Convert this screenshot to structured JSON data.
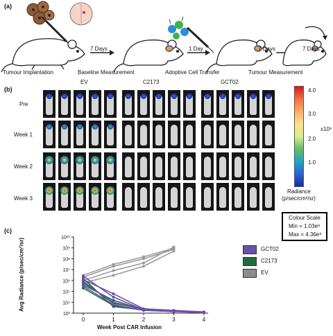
{
  "panel_a": {
    "label": "(a)",
    "steps": [
      {
        "caption": "Tumour Implantation"
      },
      {
        "arrow": "7 Days",
        "caption": "Baseline Measurement"
      },
      {
        "arrow": "1 Day",
        "caption": "Adoptive Cell Transfer"
      },
      {
        "arrow": "7 Days",
        "caption": "Tumour Measurement"
      },
      {
        "arrow": "7 Days"
      }
    ]
  },
  "panel_b": {
    "label": "(b)",
    "groups": [
      "EV",
      "C2173",
      "GCT02"
    ],
    "rows": [
      "Pre",
      "Week 1",
      "Week 2",
      "Week 3"
    ],
    "colorbar": {
      "ticks": [
        "4.0",
        "3.0",
        "2.0",
        "1.0"
      ],
      "scale_label": "x10⁸",
      "unit_line1": "Radiance",
      "unit_line2": "(p/sec/cm²/sr)"
    },
    "colour_scale": {
      "title": "Colour Scale",
      "min": "Min = 1.03e⁸",
      "max": "Max = 4.36e⁸"
    },
    "colors": {
      "low": "#1b2fa3",
      "high": "#d7191c"
    }
  },
  "panel_c": {
    "label": "(c)"
  },
  "chart_data": {
    "type": "line",
    "xlabel": "Week Post CAR Infusion",
    "ylabel": "Avg Radiance (p/sec/cm²/sr)",
    "x_ticks": [
      "0",
      "1",
      "2",
      "3",
      "4"
    ],
    "y_ticks": [
      "10³",
      "10⁴",
      "10⁵",
      "10⁶",
      "10⁷",
      "10⁸",
      "10⁹",
      "10¹⁰"
    ],
    "ylim": [
      1000,
      10000000000
    ],
    "log_y": true,
    "legend": [
      {
        "name": "GCT02",
        "color": "#6a4fae"
      },
      {
        "name": "C2173",
        "color": "#1f6b3f"
      },
      {
        "name": "EV",
        "color": "#8c8c8c"
      }
    ],
    "series": [
      {
        "group": "EV",
        "color": "#9a9a9a",
        "points": [
          [
            0,
            3000000
          ],
          [
            1,
            30000000
          ],
          [
            2,
            150000000
          ],
          [
            3,
            900000000
          ]
        ]
      },
      {
        "group": "EV",
        "color": "#9a9a9a",
        "points": [
          [
            0,
            2000000
          ],
          [
            1,
            20000000
          ],
          [
            2,
            100000000
          ],
          [
            3,
            700000000
          ]
        ]
      },
      {
        "group": "EV",
        "color": "#9a9a9a",
        "points": [
          [
            0,
            1000000
          ],
          [
            1,
            8000000
          ],
          [
            2,
            40000000
          ],
          [
            3,
            1200000000
          ]
        ]
      },
      {
        "group": "EV",
        "color": "#9a9a9a",
        "points": [
          [
            0,
            600000
          ],
          [
            1,
            3000000
          ],
          [
            2,
            20000000
          ],
          [
            3,
            500000000
          ]
        ]
      },
      {
        "group": "C2173",
        "color": "#1f6b3f",
        "points": [
          [
            0,
            1500000
          ],
          [
            1,
            4000
          ],
          [
            2,
            2000
          ],
          [
            3,
            1500
          ]
        ]
      },
      {
        "group": "C2173",
        "color": "#1f6b3f",
        "points": [
          [
            0,
            800000
          ],
          [
            1,
            8000
          ],
          [
            2,
            2500
          ],
          [
            3,
            1800
          ]
        ]
      },
      {
        "group": "C2173",
        "color": "#1f6b3f",
        "points": [
          [
            0,
            400000
          ],
          [
            1,
            15000
          ],
          [
            2,
            2000
          ],
          [
            3,
            1500
          ]
        ]
      },
      {
        "group": "C2173",
        "color": "#1f6b3f",
        "points": [
          [
            0,
            200000
          ],
          [
            1,
            5000
          ],
          [
            2,
            1800
          ],
          [
            3,
            1400
          ]
        ]
      },
      {
        "group": "GCT02",
        "color": "#6a4fae",
        "points": [
          [
            0,
            2500000
          ],
          [
            1,
            30000
          ],
          [
            2,
            2000
          ],
          [
            3,
            1500
          ],
          [
            4,
            1200
          ]
        ]
      },
      {
        "group": "GCT02",
        "color": "#6a4fae",
        "points": [
          [
            0,
            1200000
          ],
          [
            1,
            60000
          ],
          [
            2,
            2500
          ],
          [
            3,
            1800
          ],
          [
            4,
            1300
          ]
        ]
      },
      {
        "group": "GCT02",
        "color": "#6a4fae",
        "points": [
          [
            0,
            600000
          ],
          [
            1,
            10000
          ],
          [
            2,
            2000
          ],
          [
            3,
            1500
          ],
          [
            4,
            1200
          ]
        ]
      },
      {
        "group": "GCT02",
        "color": "#6a4fae",
        "points": [
          [
            0,
            300000
          ],
          [
            1,
            6000
          ],
          [
            2,
            1800
          ],
          [
            3,
            1400
          ],
          [
            4,
            1100
          ]
        ]
      }
    ]
  }
}
